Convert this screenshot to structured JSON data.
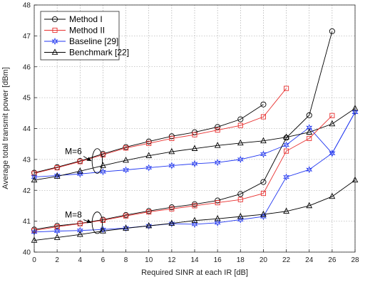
{
  "chart_data": {
    "type": "line",
    "xlabel": "Required SINR at each IR [dB]",
    "ylabel": "Average total transmit power [dBm]",
    "xlim": [
      0,
      28
    ],
    "ylim": [
      40,
      48
    ],
    "xticks": [
      0,
      2,
      4,
      6,
      8,
      10,
      12,
      14,
      16,
      18,
      20,
      22,
      24,
      26,
      28
    ],
    "yticks": [
      40,
      41,
      42,
      43,
      44,
      45,
      46,
      47,
      48
    ],
    "grid": true,
    "legend_position": "top-left",
    "series": [
      {
        "name": "Method I",
        "color": "#000000",
        "marker": "circle",
        "group": "M=6",
        "x": [
          0,
          2,
          4,
          6,
          8,
          10,
          12,
          14,
          16,
          18,
          20
        ],
        "y": [
          42.57,
          42.75,
          42.95,
          43.18,
          43.4,
          43.58,
          43.75,
          43.88,
          44.05,
          44.3,
          44.78
        ]
      },
      {
        "name": "Method II",
        "color": "#e8302f",
        "marker": "square",
        "group": "M=6",
        "x": [
          0,
          2,
          4,
          6,
          8,
          10,
          12,
          14,
          16,
          18,
          20,
          22
        ],
        "y": [
          42.55,
          42.73,
          42.93,
          43.15,
          43.37,
          43.52,
          43.68,
          43.8,
          43.95,
          44.1,
          44.38,
          45.3
        ]
      },
      {
        "name": "Baseline [29]",
        "color": "#1f35f0",
        "marker": "star",
        "group": "M=6",
        "x": [
          0,
          2,
          4,
          6,
          8,
          10,
          12,
          14,
          16,
          18,
          20,
          22,
          24,
          26,
          28
        ],
        "y": [
          42.43,
          42.48,
          42.53,
          42.6,
          42.66,
          42.73,
          42.8,
          42.86,
          42.9,
          43.0,
          43.17,
          43.47,
          44.03,
          43.2,
          44.53
        ]
      },
      {
        "name": "Benchmark [22]",
        "color": "#000000",
        "marker": "triangle",
        "group": "M=6",
        "x": [
          0,
          2,
          4,
          6,
          8,
          10,
          12,
          14,
          16,
          18,
          20,
          22,
          24,
          26,
          28
        ],
        "y": [
          42.33,
          42.45,
          42.62,
          42.8,
          42.97,
          43.12,
          43.25,
          43.35,
          43.45,
          43.53,
          43.6,
          43.72,
          43.88,
          44.15,
          44.65
        ]
      },
      {
        "name": "Method I",
        "color": "#000000",
        "marker": "circle",
        "group": "M=8",
        "x": [
          0,
          2,
          4,
          6,
          8,
          10,
          12,
          14,
          16,
          18,
          20,
          22,
          24,
          26
        ],
        "y": [
          40.73,
          40.85,
          40.93,
          41.05,
          41.2,
          41.33,
          41.45,
          41.55,
          41.67,
          41.88,
          42.27,
          43.7,
          44.43,
          47.15
        ]
      },
      {
        "name": "Method II",
        "color": "#e8302f",
        "marker": "square",
        "group": "M=8",
        "x": [
          0,
          2,
          4,
          6,
          8,
          10,
          12,
          14,
          16,
          18,
          20,
          22,
          24,
          26
        ],
        "y": [
          40.7,
          40.82,
          40.92,
          41.03,
          41.17,
          41.3,
          41.4,
          41.5,
          41.6,
          41.7,
          41.9,
          43.27,
          43.68,
          44.42
        ]
      },
      {
        "name": "Baseline [29]",
        "color": "#1f35f0",
        "marker": "star",
        "group": "M=8",
        "x": [
          0,
          2,
          4,
          6,
          8,
          10,
          12,
          14,
          16,
          18,
          20,
          22,
          24,
          26,
          28
        ],
        "y": [
          40.65,
          40.68,
          40.7,
          40.73,
          40.78,
          40.85,
          40.92,
          40.9,
          40.95,
          41.05,
          41.15,
          42.43,
          42.67,
          43.2,
          44.53
        ]
      },
      {
        "name": "Benchmark [22]",
        "color": "#000000",
        "marker": "triangle",
        "group": "M=8",
        "x": [
          0,
          2,
          4,
          6,
          8,
          10,
          12,
          14,
          16,
          18,
          20,
          22,
          24,
          26,
          28
        ],
        "y": [
          40.38,
          40.47,
          40.57,
          40.68,
          40.77,
          40.85,
          40.93,
          41.02,
          41.08,
          41.15,
          41.22,
          41.32,
          41.5,
          41.8,
          42.33
        ]
      }
    ],
    "legend": [
      "Method I",
      "Method II",
      "Baseline [29]",
      "Benchmark [22]"
    ],
    "annotations": [
      {
        "text": "M=6",
        "center": {
          "x": 5.5,
          "y": 42.95
        },
        "half_width": 0.45,
        "half_height": 0.4,
        "pointer_from": {
          "x": 4.3,
          "y": 43.1
        }
      },
      {
        "text": "M=8",
        "center": {
          "x": 5.5,
          "y": 40.95
        },
        "half_width": 0.45,
        "half_height": 0.35,
        "pointer_from": {
          "x": 4.3,
          "y": 41.05
        }
      }
    ]
  }
}
